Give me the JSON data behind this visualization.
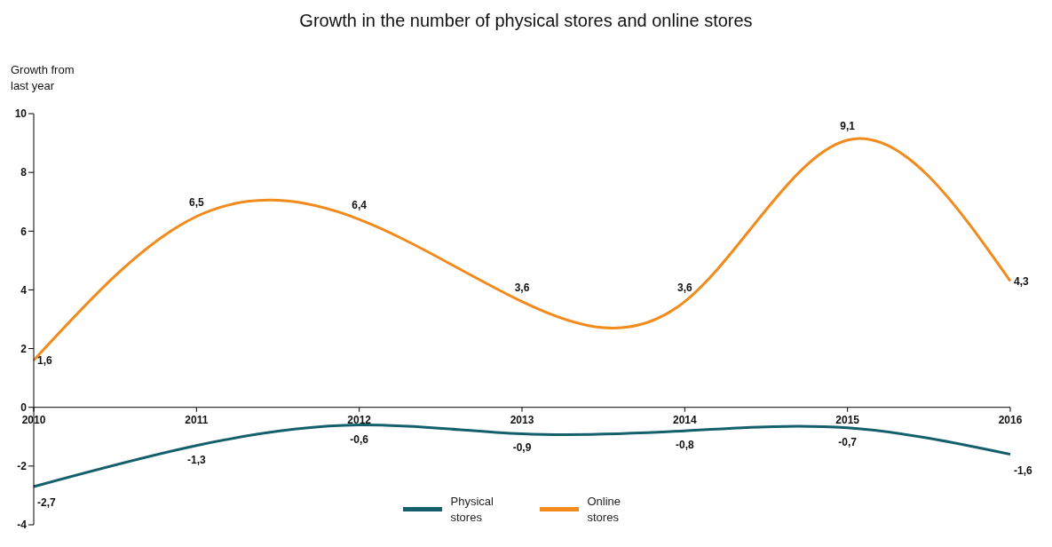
{
  "chart_data": {
    "type": "line",
    "title": "Growth in the number of physical stores and online stores",
    "ylabel": "Growth from last year",
    "categories": [
      "2010",
      "2011",
      "2012",
      "2013",
      "2014",
      "2015",
      "2016"
    ],
    "series": [
      {
        "name": "Physical stores",
        "color": "#135f6b",
        "values": [
          -2.7,
          -1.3,
          -0.6,
          -0.9,
          -0.8,
          -0.7,
          -1.6
        ],
        "value_labels": [
          "-2,7",
          "-1,3",
          "-0,6",
          "-0,9",
          "-0,8",
          "-0,7",
          "-1,6"
        ]
      },
      {
        "name": "Online stores",
        "color": "#f28a1c",
        "values": [
          1.6,
          6.5,
          6.4,
          3.6,
          3.6,
          9.1,
          4.3
        ],
        "value_labels": [
          "1,6",
          "6,5",
          "6,4",
          "3,6",
          "3,6",
          "9,1",
          "4,3"
        ]
      }
    ],
    "ylim": [
      -4,
      10
    ],
    "yticks": [
      -4,
      -2,
      0,
      2,
      4,
      6,
      8,
      10
    ],
    "grid": false,
    "legend": "bottom",
    "marker": "none",
    "line_style": "solid"
  }
}
